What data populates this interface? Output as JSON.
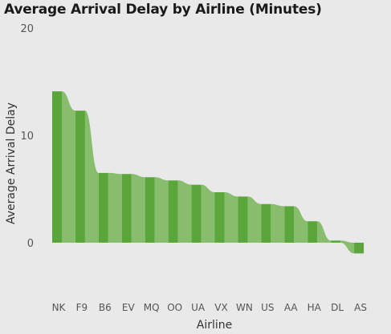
{
  "chart_data": {
    "type": "bar",
    "title": "Average Arrival Delay by Airline (Minutes)",
    "xlabel": "Airline",
    "ylabel": "Average Arrival Delay",
    "categories": [
      "NK",
      "F9",
      "B6",
      "EV",
      "MQ",
      "OO",
      "UA",
      "VX",
      "WN",
      "US",
      "AA",
      "HA",
      "DL",
      "AS"
    ],
    "values": [
      14.1,
      12.3,
      6.5,
      6.4,
      6.1,
      5.8,
      5.4,
      4.7,
      4.3,
      3.6,
      3.4,
      2.0,
      0.2,
      -1.0
    ],
    "yticks": [
      0,
      10,
      20
    ],
    "ytick_labels": [
      "0",
      "10",
      "20"
    ],
    "ylim": [
      -3,
      20
    ],
    "grid": false,
    "legend": "none",
    "colors": {
      "bar": "#5aa63a",
      "ribbon": "#88bd6d",
      "background": "#e9e9e9",
      "text": "#555555"
    }
  }
}
